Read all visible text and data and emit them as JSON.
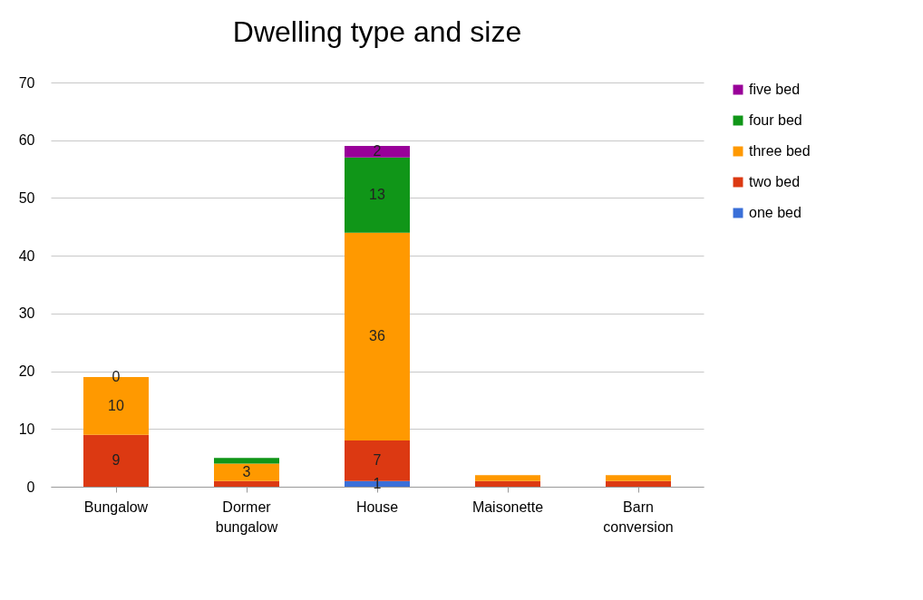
{
  "chart_data": {
    "type": "bar",
    "title": "Dwelling type and size",
    "categories": [
      "Bungalow",
      "Dormer bungalow",
      "House",
      "Maisonette",
      "Barn conversion"
    ],
    "stacked": true,
    "grid": "y",
    "legend": "right",
    "ylim": [
      0,
      70
    ],
    "yticks": [
      0,
      10,
      20,
      30,
      40,
      50,
      60,
      70
    ],
    "series": [
      {
        "name": "one bed",
        "color": "#3a6fd8",
        "values": [
          0,
          0,
          1,
          0,
          0
        ],
        "value_labels": [
          null,
          null,
          "1",
          null,
          null
        ]
      },
      {
        "name": "two bed",
        "color": "#dc3912",
        "values": [
          9,
          1,
          7,
          1,
          1
        ],
        "value_labels": [
          "9",
          null,
          "7",
          null,
          null
        ]
      },
      {
        "name": "three bed",
        "color": "#ff9900",
        "values": [
          10,
          3,
          36,
          1,
          1
        ],
        "value_labels": [
          "10",
          "3",
          "36",
          null,
          null
        ]
      },
      {
        "name": "four bed",
        "color": "#109618",
        "values": [
          0,
          1,
          13,
          0,
          0
        ],
        "value_labels": [
          null,
          null,
          "13",
          null,
          null
        ]
      },
      {
        "name": "five bed",
        "color": "#990099",
        "values": [
          0,
          0,
          2,
          0,
          0
        ],
        "value_labels": [
          "0",
          null,
          "2",
          null,
          null
        ]
      }
    ]
  }
}
